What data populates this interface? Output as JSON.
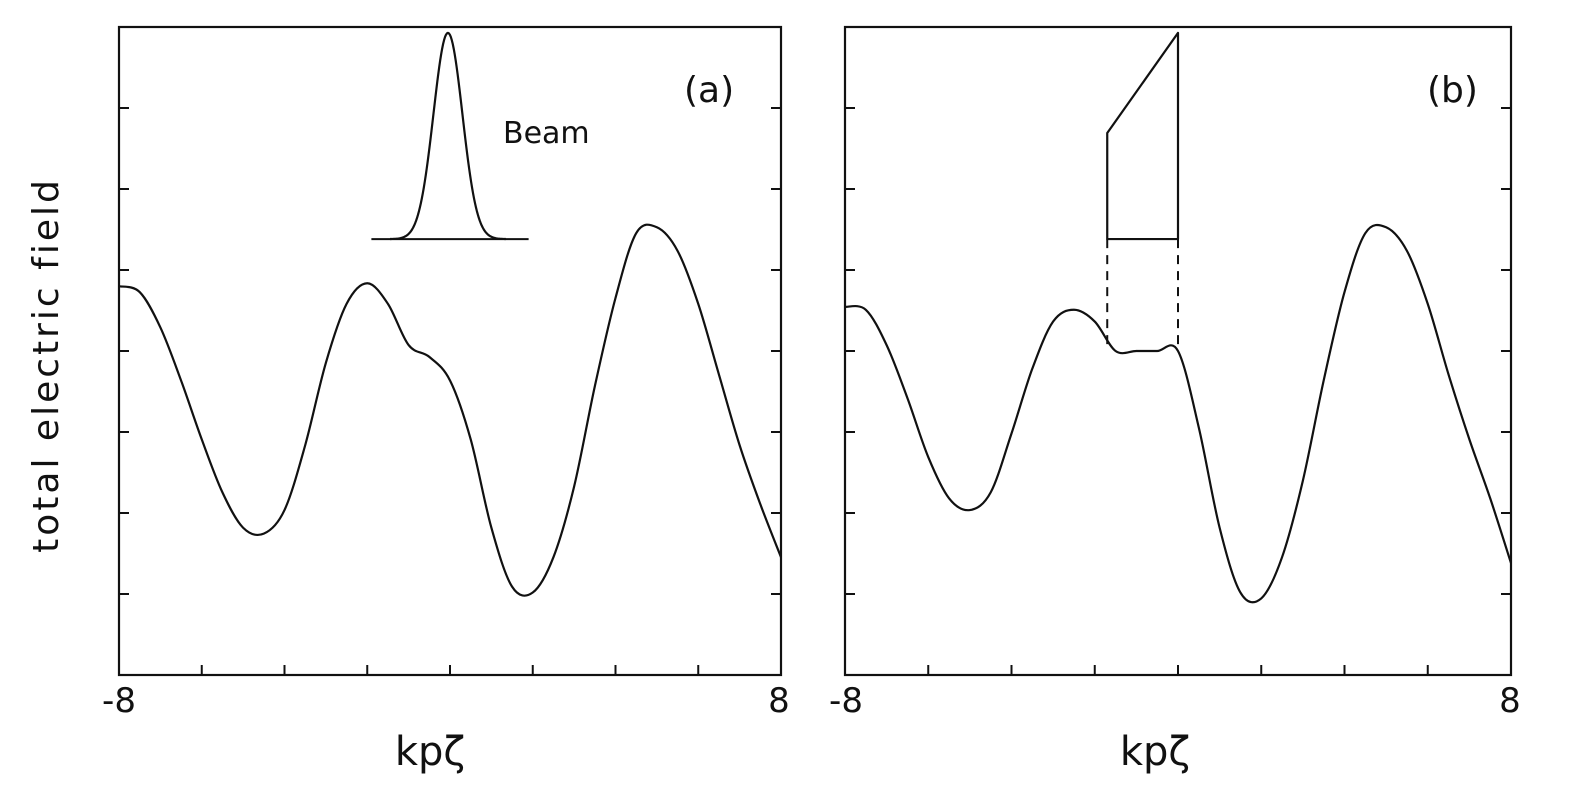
{
  "ylabel": "total electric field",
  "chart_data": [
    {
      "type": "line",
      "panel_label": "(a)",
      "annotation": "Beam",
      "xlabel": "kpζ",
      "xlim": [
        -8,
        8
      ],
      "xtick_labels": [
        "-8",
        "8"
      ],
      "ylim": [
        -5.5,
        5.5
      ],
      "x": [
        -8,
        -7.5,
        -7,
        -6.5,
        -6,
        -5.5,
        -5,
        -4.5,
        -4,
        -3.5,
        -3,
        -2.5,
        -2,
        -1.5,
        -1,
        -0.5,
        0,
        0.5,
        1,
        1.5,
        2,
        2.5,
        3,
        3.5,
        4,
        4.5,
        5,
        5.5,
        6,
        6.5,
        7,
        7.5,
        8
      ],
      "series": [
        {
          "values": [
            1.1,
            1.0,
            0.4,
            -0.5,
            -1.5,
            -2.4,
            -3.0,
            -3.1,
            -2.7,
            -1.6,
            -0.2,
            0.8,
            1.15,
            0.8,
            0.1,
            -0.1,
            -0.5,
            -1.5,
            -3.0,
            -4.0,
            -4.1,
            -3.5,
            -2.3,
            -0.6,
            0.9,
            2.0,
            2.1,
            1.7,
            0.8,
            -0.4,
            -1.6,
            -2.6,
            -3.5
          ]
        }
      ],
      "beam_profile": {
        "shape": "gaussian",
        "center": -0.05,
        "sigma": 0.35,
        "height": 3.5
      }
    },
    {
      "type": "line",
      "panel_label": "(b)",
      "xlabel": "kpζ",
      "xlim": [
        -8,
        8
      ],
      "xtick_labels": [
        "-8",
        "8"
      ],
      "ylim": [
        -5.5,
        5.5
      ],
      "x": [
        -8,
        -7.5,
        -7,
        -6.5,
        -6,
        -5.5,
        -5,
        -4.5,
        -4,
        -3.5,
        -3,
        -2.5,
        -2,
        -1.5,
        -1,
        -0.5,
        0,
        0.5,
        1,
        1.5,
        2,
        2.5,
        3,
        3.5,
        4,
        4.5,
        5,
        5.5,
        6,
        6.5,
        7,
        7.5,
        8
      ],
      "series": [
        {
          "values": [
            0.75,
            0.7,
            0.1,
            -0.8,
            -1.8,
            -2.5,
            -2.7,
            -2.4,
            -1.4,
            -0.3,
            0.5,
            0.7,
            0.5,
            0.0,
            0.0,
            0.0,
            0.0,
            -1.3,
            -3.0,
            -4.1,
            -4.2,
            -3.5,
            -2.2,
            -0.5,
            1.0,
            2.0,
            2.1,
            1.7,
            0.8,
            -0.4,
            -1.5,
            -2.5,
            -3.6
          ]
        }
      ],
      "beam_profile": {
        "shape": "ramp",
        "start": -1.7,
        "end": 0.0,
        "front_height": 1.8,
        "back_height": 3.5
      }
    }
  ]
}
